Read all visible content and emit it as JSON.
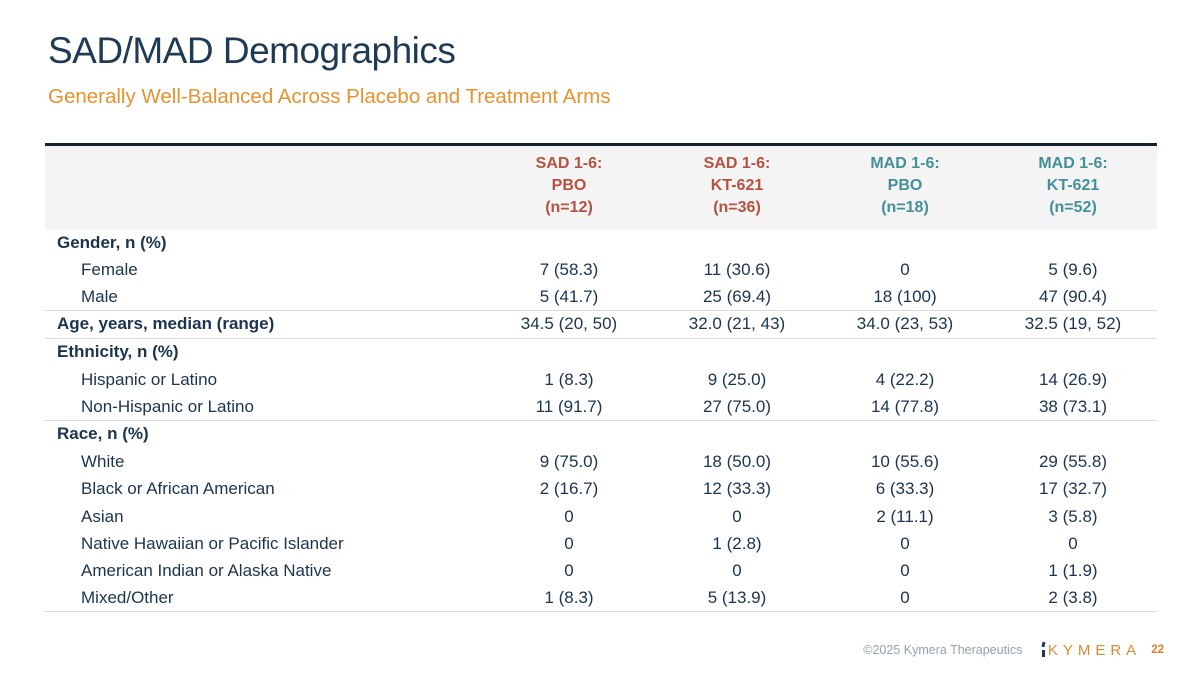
{
  "slide": {
    "title": "SAD/MAD Demographics",
    "subtitle": "Generally Well-Balanced Across Placebo and Treatment Arms"
  },
  "table": {
    "columns": [
      {
        "lines": [
          "SAD 1-6:",
          "PBO",
          "(n=12)"
        ],
        "color": "#b5523f"
      },
      {
        "lines": [
          "SAD 1-6:",
          "KT-621",
          "(n=36)"
        ],
        "color": "#b5523f"
      },
      {
        "lines": [
          "MAD 1-6:",
          "PBO",
          "(n=18)"
        ],
        "color": "#43909a"
      },
      {
        "lines": [
          "MAD 1-6:",
          "KT-621",
          "(n=52)"
        ],
        "color": "#43909a"
      }
    ],
    "rows": [
      {
        "label": "Gender, n (%)",
        "type": "category",
        "values": [
          "",
          "",
          "",
          ""
        ],
        "separator": false
      },
      {
        "label": "Female",
        "type": "item",
        "values": [
          "7 (58.3)",
          "11 (30.6)",
          "0",
          "5 (9.6)"
        ],
        "separator": false
      },
      {
        "label": "Male",
        "type": "item",
        "values": [
          "5 (41.7)",
          "25 (69.4)",
          "18 (100)",
          "47 (90.4)"
        ],
        "separator": true
      },
      {
        "label": "Age, years, median (range)",
        "type": "category",
        "values": [
          "34.5 (20, 50)",
          "32.0 (21, 43)",
          "34.0 (23, 53)",
          "32.5 (19, 52)"
        ],
        "separator": true
      },
      {
        "label": "Ethnicity, n (%)",
        "type": "category",
        "values": [
          "",
          "",
          "",
          ""
        ],
        "separator": false
      },
      {
        "label": "Hispanic or Latino",
        "type": "item",
        "values": [
          "1 (8.3)",
          "9 (25.0)",
          "4 (22.2)",
          "14 (26.9)"
        ],
        "separator": false
      },
      {
        "label": "Non-Hispanic or Latino",
        "type": "item",
        "values": [
          "11 (91.7)",
          "27 (75.0)",
          "14 (77.8)",
          "38 (73.1)"
        ],
        "separator": true
      },
      {
        "label": "Race, n (%)",
        "type": "category",
        "values": [
          "",
          "",
          "",
          ""
        ],
        "separator": false
      },
      {
        "label": "White",
        "type": "item",
        "values": [
          "9 (75.0)",
          "18 (50.0)",
          "10 (55.6)",
          "29 (55.8)"
        ],
        "separator": false
      },
      {
        "label": "Black or African American",
        "type": "item",
        "values": [
          "2 (16.7)",
          "12 (33.3)",
          "6 (33.3)",
          "17 (32.7)"
        ],
        "separator": false
      },
      {
        "label": "Asian",
        "type": "item",
        "values": [
          "0",
          "0",
          "2 (11.1)",
          "3 (5.8)"
        ],
        "separator": false
      },
      {
        "label": "Native Hawaiian or Pacific Islander",
        "type": "item",
        "values": [
          "0",
          "1 (2.8)",
          "0",
          "0"
        ],
        "separator": false
      },
      {
        "label": "American Indian or Alaska Native",
        "type": "item",
        "values": [
          "0",
          "0",
          "0",
          "1 (1.9)"
        ],
        "separator": false
      },
      {
        "label": "Mixed/Other",
        "type": "item",
        "values": [
          "1 (8.3)",
          "5 (13.9)",
          "0",
          "2 (3.8)"
        ],
        "separator": true
      }
    ]
  },
  "footer": {
    "copyright": "©2025 Kymera Therapeutics",
    "logo_text": "KYMERA",
    "page_number": "22"
  },
  "colors": {
    "title_navy": "#1e3a56",
    "subtitle_orange": "#e8912d",
    "sad_red": "#b5523f",
    "mad_teal": "#43909a",
    "body_text": "#1b3450",
    "header_bg": "#f4f4f4",
    "header_top_border": "#17212e",
    "row_separator": "#dcdcdc",
    "footer_gray": "#95a1ad",
    "logo_orange": "#d98a35"
  }
}
